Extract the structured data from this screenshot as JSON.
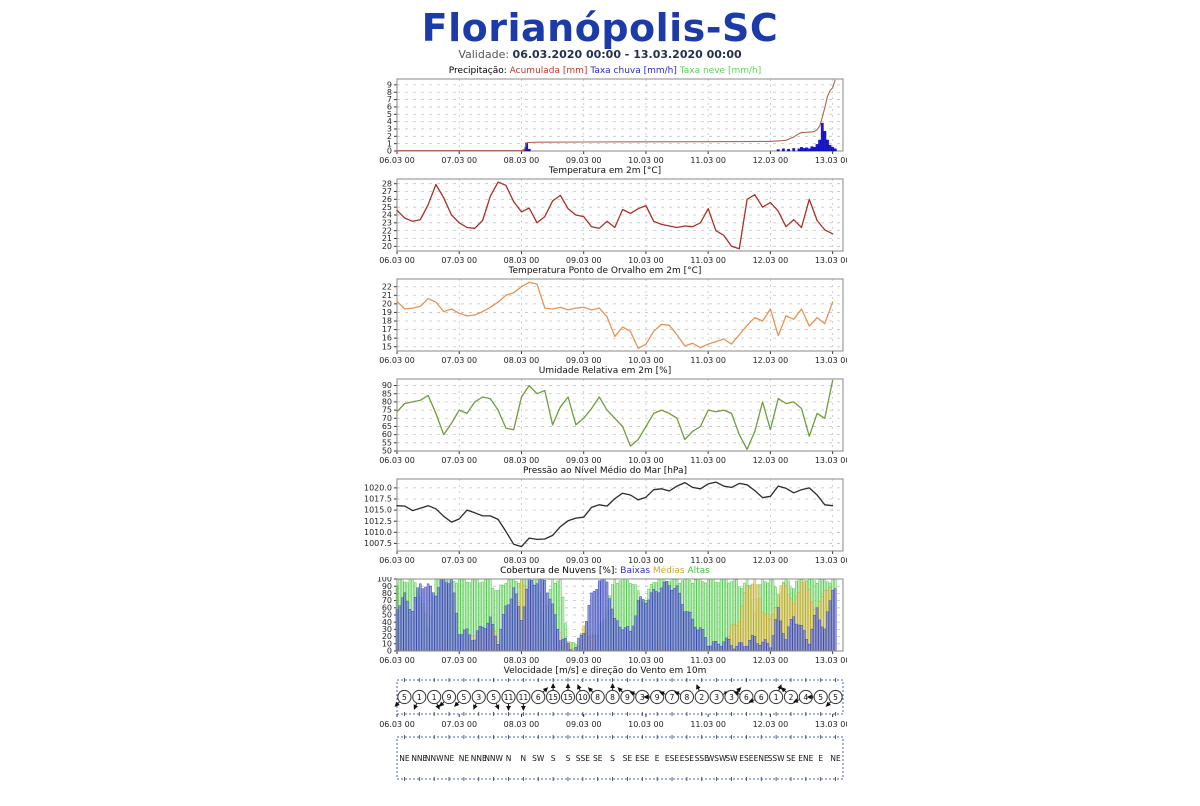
{
  "page": {
    "title": "Florianópolis-SC",
    "title_color": "#1c3aa8",
    "validade_label": "Validade:",
    "validade_range": "06.03.2020 00:00 - 13.03.2020 00:00"
  },
  "x_axis": {
    "labels": [
      "06.03 00",
      "07.03 00",
      "08.03 00",
      "09.03 00",
      "10.03 00",
      "11.03 00",
      "12.03 00",
      "13.03 00"
    ],
    "hours": [
      0,
      24,
      48,
      72,
      96,
      120,
      144,
      168
    ],
    "domain_max": 172
  },
  "chart_data": [
    {
      "id": "precip",
      "type": "precip",
      "title_segments": [
        {
          "text": "Precipitação: ",
          "color": "#000000"
        },
        {
          "text": "Acumulada [mm] ",
          "color": "#c03a2e"
        },
        {
          "text": "Taxa chuva [mm/h] ",
          "color": "#2b2bc0"
        },
        {
          "text": "Taxa neve [mm/h]",
          "color": "#5ecf5e"
        }
      ],
      "ylim": [
        0,
        9.8
      ],
      "yticks": [
        0,
        1,
        2,
        3,
        4,
        5,
        6,
        7,
        8,
        9
      ],
      "line_color": "#b06455",
      "bar_color": "#1a1acc",
      "line_points": [
        [
          0,
          0.06
        ],
        [
          24,
          0.06
        ],
        [
          48,
          0.06
        ],
        [
          49,
          0.1
        ],
        [
          50,
          1.15
        ],
        [
          54,
          1.2
        ],
        [
          72,
          1.22
        ],
        [
          96,
          1.25
        ],
        [
          120,
          1.27
        ],
        [
          144,
          1.3
        ],
        [
          150,
          1.45
        ],
        [
          153,
          1.9
        ],
        [
          155,
          2.35
        ],
        [
          156,
          2.5
        ],
        [
          158,
          2.55
        ],
        [
          160,
          2.6
        ],
        [
          161,
          2.65
        ],
        [
          162,
          2.9
        ],
        [
          163,
          3.4
        ],
        [
          164,
          4.6
        ],
        [
          165,
          5.9
        ],
        [
          166,
          7.4
        ],
        [
          167,
          8.2
        ],
        [
          168,
          8.6
        ],
        [
          169,
          9.7
        ]
      ],
      "bar_points": [
        [
          49,
          0.2
        ],
        [
          50,
          1.1
        ],
        [
          51,
          0.25
        ],
        [
          147,
          0.2
        ],
        [
          149,
          0.3
        ],
        [
          151,
          0.25
        ],
        [
          153,
          0.35
        ],
        [
          155,
          0.3
        ],
        [
          156,
          0.5
        ],
        [
          157,
          0.35
        ],
        [
          158,
          0.45
        ],
        [
          159,
          0.3
        ],
        [
          160,
          0.6
        ],
        [
          161,
          0.5
        ],
        [
          162,
          0.9
        ],
        [
          163,
          1.5
        ],
        [
          164,
          3.8
        ],
        [
          165,
          2.7
        ],
        [
          166,
          1.5
        ],
        [
          167,
          0.8
        ],
        [
          168,
          0.5
        ],
        [
          169,
          0.3
        ]
      ]
    },
    {
      "id": "temp",
      "type": "line",
      "title": "Temperatura em 2m [°C]",
      "color": "#a93026",
      "ylim": [
        19.4,
        28.6
      ],
      "yticks": [
        20,
        21,
        22,
        23,
        24,
        25,
        26,
        27,
        28
      ],
      "step_hours": 3,
      "values": [
        24.6,
        23.6,
        23.2,
        23.4,
        25.3,
        27.9,
        26.2,
        24.0,
        23.0,
        22.4,
        22.3,
        23.3,
        26.4,
        28.2,
        27.8,
        25.7,
        24.4,
        24.9,
        23.0,
        23.8,
        25.8,
        26.5,
        24.8,
        24.0,
        23.8,
        22.5,
        22.3,
        23.2,
        22.4,
        24.7,
        24.2,
        24.8,
        25.2,
        23.2,
        22.8,
        22.6,
        22.4,
        22.6,
        22.5,
        23.0,
        24.8,
        22.0,
        21.4,
        20.0,
        19.7,
        26.0,
        26.6,
        25.0,
        25.6,
        24.5,
        22.5,
        23.4,
        22.4,
        26.0,
        23.3,
        22.1,
        21.6
      ]
    },
    {
      "id": "dew",
      "type": "line",
      "title": "Temperatura Ponto de Orvalho em 2m [°C]",
      "color": "#e69455",
      "ylim": [
        14.5,
        22.9
      ],
      "yticks": [
        15,
        16,
        17,
        18,
        19,
        20,
        21,
        22
      ],
      "step_hours": 3,
      "values": [
        20.3,
        19.4,
        19.5,
        19.7,
        20.6,
        20.2,
        19.1,
        19.4,
        18.9,
        18.6,
        18.7,
        19.1,
        19.6,
        20.2,
        21.0,
        21.3,
        22.0,
        22.5,
        22.3,
        19.5,
        19.4,
        19.6,
        19.3,
        19.5,
        19.6,
        19.3,
        19.5,
        18.5,
        16.2,
        17.3,
        16.8,
        14.8,
        15.3,
        16.8,
        17.6,
        17.5,
        16.4,
        15.1,
        15.4,
        14.9,
        15.3,
        15.6,
        15.9,
        15.3,
        16.4,
        17.5,
        18.4,
        18.0,
        19.4,
        16.3,
        18.6,
        18.2,
        19.4,
        17.4,
        18.4,
        17.7,
        20.2
      ]
    },
    {
      "id": "rh",
      "type": "line",
      "title": "Umidade Relativa em 2m [%]",
      "color": "#6f9d3c",
      "ylim": [
        50,
        94
      ],
      "yticks": [
        50,
        55,
        60,
        65,
        70,
        75,
        80,
        85,
        90
      ],
      "step_hours": 3,
      "values": [
        74,
        79,
        80,
        81,
        84,
        73,
        60,
        67,
        75,
        73,
        80,
        83,
        82,
        75,
        64,
        63,
        83,
        90,
        85,
        87,
        66,
        77,
        83,
        66,
        70,
        76,
        83,
        75,
        70,
        65,
        53,
        57,
        65,
        73,
        75,
        73,
        70,
        57,
        62,
        65,
        75,
        74,
        75,
        73,
        60,
        51,
        62,
        80,
        63,
        82,
        79,
        80,
        76,
        59,
        73,
        70,
        93
      ]
    },
    {
      "id": "pres",
      "type": "line",
      "title": "Pressão ao Nível Médio do Mar [hPa]",
      "color": "#2b2b2b",
      "ylim": [
        1005.8,
        1022.0
      ],
      "yticks": [
        1007.5,
        1010.0,
        1012.5,
        1015.0,
        1017.5,
        1020.0
      ],
      "ytick_decimals": 1,
      "step_hours": 3,
      "values": [
        1016.0,
        1015.9,
        1014.9,
        1015.4,
        1016.0,
        1015.3,
        1013.6,
        1012.3,
        1013.0,
        1015.0,
        1014.4,
        1013.7,
        1013.7,
        1012.9,
        1010.2,
        1007.3,
        1006.8,
        1008.7,
        1008.4,
        1008.5,
        1009.3,
        1011.3,
        1012.6,
        1013.2,
        1013.4,
        1015.6,
        1016.2,
        1015.9,
        1017.6,
        1018.8,
        1018.4,
        1017.3,
        1017.9,
        1019.6,
        1019.8,
        1019.3,
        1020.4,
        1021.2,
        1020.1,
        1019.8,
        1020.9,
        1021.3,
        1020.4,
        1020.1,
        1021.0,
        1020.7,
        1019.4,
        1017.8,
        1018.1,
        1020.4,
        1019.9,
        1018.9,
        1019.6,
        1020.0,
        1018.4,
        1016.2,
        1016.0
      ]
    },
    {
      "id": "clouds",
      "type": "clouds",
      "title_segments": [
        {
          "text": "Cobertura de Nuvens [%]: ",
          "color": "#000000"
        },
        {
          "text": "Baixas ",
          "color": "#2b2bc0"
        },
        {
          "text": "Médias ",
          "color": "#c8a830"
        },
        {
          "text": "Altas",
          "color": "#46c046"
        }
      ],
      "ylim": [
        0,
        100
      ],
      "yticks": [
        0,
        10,
        20,
        30,
        40,
        50,
        60,
        70,
        80,
        90,
        100
      ],
      "step_hours": 3,
      "series": [
        {
          "name": "Altas",
          "fill": "#b4ecac",
          "stroke": "#46c046",
          "opacity": 0.75,
          "values": [
            90,
            100,
            100,
            80,
            30,
            100,
            100,
            100,
            100,
            100,
            100,
            100,
            100,
            80,
            100,
            100,
            100,
            100,
            100,
            40,
            100,
            100,
            10,
            5,
            0,
            0,
            30,
            60,
            100,
            100,
            100,
            80,
            70,
            100,
            100,
            100,
            100,
            100,
            100,
            100,
            100,
            100,
            100,
            100,
            90,
            100,
            60,
            100,
            100,
            80,
            100,
            90,
            100,
            100,
            100,
            100,
            100
          ]
        },
        {
          "name": "Médias",
          "fill": "#ead98e",
          "stroke": "#bfa32e",
          "opacity": 0.85,
          "values": [
            15,
            5,
            0,
            0,
            0,
            0,
            8,
            0,
            0,
            0,
            25,
            18,
            40,
            12,
            0,
            0,
            95,
            90,
            0,
            0,
            0,
            25,
            10,
            0,
            30,
            25,
            0,
            0,
            0,
            0,
            0,
            0,
            0,
            0,
            15,
            0,
            0,
            0,
            0,
            0,
            0,
            0,
            0,
            30,
            45,
            90,
            100,
            60,
            40,
            80,
            95,
            60,
            100,
            85,
            50,
            90,
            80
          ]
        },
        {
          "name": "Baixas",
          "fill": "#8890dd",
          "stroke": "#2f3fae",
          "opacity": 0.85,
          "values": [
            63,
            75,
            58,
            95,
            88,
            82,
            100,
            98,
            28,
            25,
            18,
            35,
            42,
            15,
            60,
            86,
            48,
            100,
            96,
            100,
            60,
            20,
            8,
            3,
            30,
            75,
            100,
            98,
            40,
            35,
            25,
            68,
            72,
            80,
            90,
            93,
            85,
            60,
            42,
            30,
            12,
            8,
            15,
            10,
            6,
            12,
            18,
            10,
            10,
            55,
            18,
            50,
            30,
            15,
            58,
            28,
            90
          ]
        }
      ]
    },
    {
      "id": "wind",
      "type": "wind",
      "title": "Velocidade [m/s] e direção do Vento em 10m",
      "box_color": "#4466cc",
      "speeds": [
        5,
        1,
        1,
        9,
        5,
        3,
        5,
        11,
        11,
        6,
        15,
        15,
        10,
        8,
        8,
        9,
        3,
        9,
        7,
        8,
        2,
        3,
        3,
        6,
        6,
        1,
        2,
        4,
        5,
        5
      ],
      "directions": [
        "NE",
        "NNE",
        "NNW",
        "NE",
        "NE",
        "NNE",
        "NNW",
        "N",
        "N",
        "SW",
        "S",
        "S",
        "SSE",
        "SE",
        "S",
        "SE",
        "ESE",
        "E",
        "ESE",
        "ESE",
        "SSE",
        "WSW",
        "SW",
        "ESE",
        "ENE",
        "SSW",
        "SE",
        "ENE",
        "E",
        "NE"
      ]
    },
    {
      "id": "dirs",
      "type": "dirbox",
      "box_color": "#4466cc",
      "labels": [
        "NE",
        "NNE",
        "NNW",
        "NE",
        "NE",
        "NNE",
        "NNW",
        "N",
        "N",
        "SW",
        "S",
        "S",
        "SSE",
        "SE",
        "S",
        "SE",
        "ESE",
        "E",
        "ESE",
        "ESE",
        "SSE",
        "WSW",
        "SW",
        "ESE",
        "ENE",
        "SSW",
        "SE",
        "ENE",
        "E",
        "NE"
      ]
    }
  ]
}
